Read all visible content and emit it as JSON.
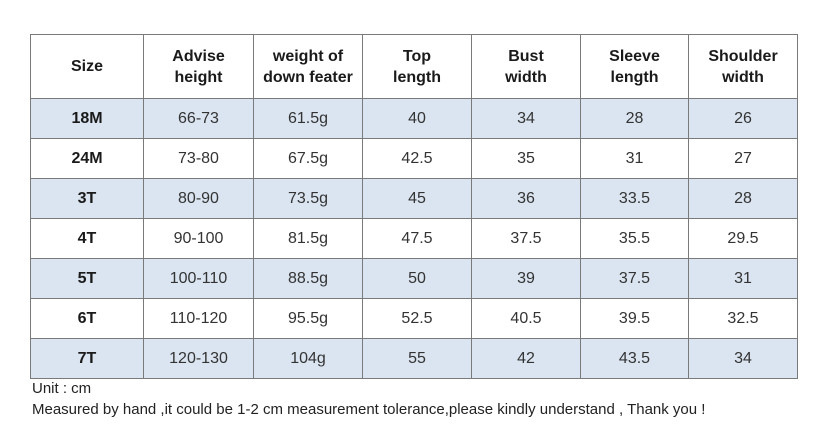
{
  "table": {
    "columns": [
      "Size",
      "Advise height",
      "weight of down feater",
      "Top length",
      "Bust width",
      "Sleeve length",
      "Shoulder width"
    ],
    "header_lines": [
      [
        "Size"
      ],
      [
        "Advise",
        "height"
      ],
      [
        "weight of",
        "down feater"
      ],
      [
        "Top",
        "length"
      ],
      [
        "Bust",
        "width"
      ],
      [
        "Sleeve",
        "length"
      ],
      [
        "Shoulder",
        "width"
      ]
    ],
    "rows": [
      [
        "18M",
        "66-73",
        "61.5g",
        "40",
        "34",
        "28",
        "26"
      ],
      [
        "24M",
        "73-80",
        "67.5g",
        "42.5",
        "35",
        "31",
        "27"
      ],
      [
        "3T",
        "80-90",
        "73.5g",
        "45",
        "36",
        "33.5",
        "28"
      ],
      [
        "4T",
        "90-100",
        "81.5g",
        "47.5",
        "37.5",
        "35.5",
        "29.5"
      ],
      [
        "5T",
        "100-110",
        "88.5g",
        "50",
        "39",
        "37.5",
        "31"
      ],
      [
        "6T",
        "110-120",
        "95.5g",
        "52.5",
        "40.5",
        "39.5",
        "32.5"
      ],
      [
        "7T",
        "120-130",
        "104g",
        "55",
        "42",
        "43.5",
        "34"
      ]
    ],
    "shaded_row_color": "#dbe5f1",
    "border_color": "#7a7a7a"
  },
  "notes": {
    "unit": "Unit : cm",
    "measurement": "Measured by hand ,it could be 1-2 cm measurement tolerance,please kindly understand , Thank you !"
  }
}
